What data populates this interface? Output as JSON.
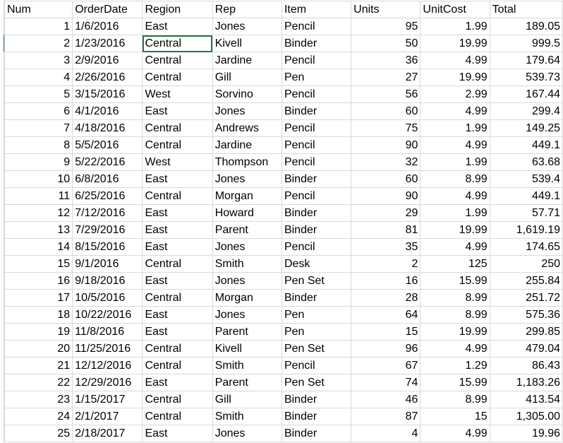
{
  "sheet": {
    "accent_color": "#1f7a45",
    "grid_color": "#d9d9d9",
    "columns": [
      "Num",
      "OrderDate",
      "Region",
      "Rep",
      "Item",
      "Units",
      "UnitCost",
      "Total"
    ],
    "rows": [
      [
        "1",
        "1/6/2016",
        "East",
        "Jones",
        "Pencil",
        "95",
        "1.99",
        "189.05"
      ],
      [
        "2",
        "1/23/2016",
        "Central",
        "Kivell",
        "Binder",
        "50",
        "19.99",
        "999.5"
      ],
      [
        "3",
        "2/9/2016",
        "Central",
        "Jardine",
        "Pencil",
        "36",
        "4.99",
        "179.64"
      ],
      [
        "4",
        "2/26/2016",
        "Central",
        "Gill",
        "Pen",
        "27",
        "19.99",
        "539.73"
      ],
      [
        "5",
        "3/15/2016",
        "West",
        "Sorvino",
        "Pencil",
        "56",
        "2.99",
        "167.44"
      ],
      [
        "6",
        "4/1/2016",
        "East",
        "Jones",
        "Binder",
        "60",
        "4.99",
        "299.4"
      ],
      [
        "7",
        "4/18/2016",
        "Central",
        "Andrews",
        "Pencil",
        "75",
        "1.99",
        "149.25"
      ],
      [
        "8",
        "5/5/2016",
        "Central",
        "Jardine",
        "Pencil",
        "90",
        "4.99",
        "449.1"
      ],
      [
        "9",
        "5/22/2016",
        "West",
        "Thompson",
        "Pencil",
        "32",
        "1.99",
        "63.68"
      ],
      [
        "10",
        "6/8/2016",
        "East",
        "Jones",
        "Binder",
        "60",
        "8.99",
        "539.4"
      ],
      [
        "11",
        "6/25/2016",
        "Central",
        "Morgan",
        "Pencil",
        "90",
        "4.99",
        "449.1"
      ],
      [
        "12",
        "7/12/2016",
        "East",
        "Howard",
        "Binder",
        "29",
        "1.99",
        "57.71"
      ],
      [
        "13",
        "7/29/2016",
        "East",
        "Parent",
        "Binder",
        "81",
        "19.99",
        "1,619.19"
      ],
      [
        "14",
        "8/15/2016",
        "East",
        "Jones",
        "Pencil",
        "35",
        "4.99",
        "174.65"
      ],
      [
        "15",
        "9/1/2016",
        "Central",
        "Smith",
        "Desk",
        "2",
        "125",
        "250"
      ],
      [
        "16",
        "9/18/2016",
        "East",
        "Jones",
        "Pen Set",
        "16",
        "15.99",
        "255.84"
      ],
      [
        "17",
        "10/5/2016",
        "Central",
        "Morgan",
        "Binder",
        "28",
        "8.99",
        "251.72"
      ],
      [
        "18",
        "10/22/2016",
        "East",
        "Jones",
        "Pen",
        "64",
        "8.99",
        "575.36"
      ],
      [
        "19",
        "11/8/2016",
        "East",
        "Parent",
        "Pen",
        "15",
        "19.99",
        "299.85"
      ],
      [
        "20",
        "11/25/2016",
        "Central",
        "Kivell",
        "Pen Set",
        "96",
        "4.99",
        "479.04"
      ],
      [
        "21",
        "12/12/2016",
        "Central",
        "Smith",
        "Pencil",
        "67",
        "1.29",
        "86.43"
      ],
      [
        "22",
        "12/29/2016",
        "East",
        "Parent",
        "Pen Set",
        "74",
        "15.99",
        "1,183.26"
      ],
      [
        "23",
        "1/15/2017",
        "Central",
        "Gill",
        "Binder",
        "46",
        "8.99",
        "413.54"
      ],
      [
        "24",
        "2/1/2017",
        "Central",
        "Smith",
        "Binder",
        "87",
        "15",
        "1,305.00"
      ],
      [
        "25",
        "2/18/2017",
        "East",
        "Jones",
        "Binder",
        "4",
        "4.99",
        "19.96"
      ]
    ]
  }
}
